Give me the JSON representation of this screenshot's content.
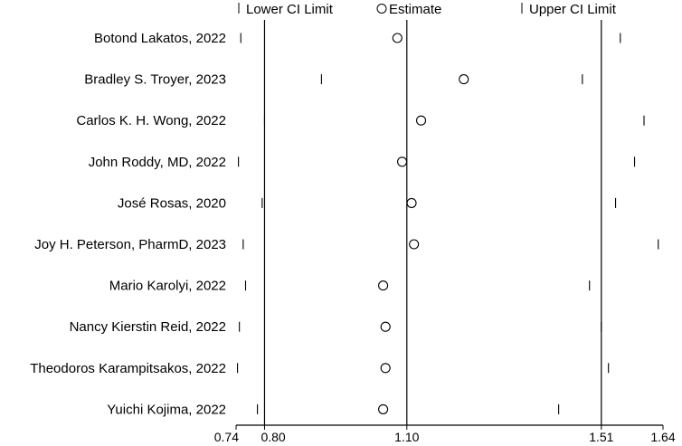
{
  "chart_data": {
    "type": "scatter",
    "subtype": "sensitivity-forest-plot",
    "legend": {
      "placement": "top",
      "items": [
        {
          "key": "lower",
          "label": "Lower CI Limit",
          "marker": "tick"
        },
        {
          "key": "estimate",
          "label": "Estimate",
          "marker": "circle"
        },
        {
          "key": "upper",
          "label": "Upper CI Limit",
          "marker": "tick"
        }
      ]
    },
    "x_axis": {
      "range": [
        0.74,
        1.64
      ],
      "ticks": [
        0.74,
        0.8,
        1.1,
        1.51,
        1.64
      ],
      "tick_labels": [
        "0.74",
        "0.80",
        "1.10",
        "1.51",
        "1.64"
      ],
      "reference_lines": [
        0.8,
        1.1,
        1.51
      ]
    },
    "grid": false,
    "series": [
      {
        "study": "Botond Lakatos, 2022",
        "lower": 0.75,
        "estimate": 1.08,
        "upper": 1.55
      },
      {
        "study": "Bradley S. Troyer, 2023",
        "lower": 0.92,
        "estimate": 1.22,
        "upper": 1.47
      },
      {
        "study": "Carlos K. H. Wong, 2022",
        "lower": 0.8,
        "estimate": 1.13,
        "upper": 1.6
      },
      {
        "study": "John Roddy, MD, 2022",
        "lower": 0.745,
        "estimate": 1.09,
        "upper": 1.58
      },
      {
        "study": "José Rosas, 2020",
        "lower": 0.795,
        "estimate": 1.11,
        "upper": 1.54
      },
      {
        "study": "Joy H. Peterson, PharmD, 2023",
        "lower": 0.755,
        "estimate": 1.115,
        "upper": 1.63
      },
      {
        "study": "Mario Karolyi, 2022",
        "lower": 0.76,
        "estimate": 1.05,
        "upper": 1.485
      },
      {
        "study": "Nancy Kierstin Reid, 2022",
        "lower": 0.747,
        "estimate": 1.055,
        "upper": 1.51
      },
      {
        "study": "Theodoros Karampitsakos, 2022",
        "lower": 0.743,
        "estimate": 1.055,
        "upper": 1.525
      },
      {
        "study": "Yuichi Kojima, 2022",
        "lower": 0.785,
        "estimate": 1.05,
        "upper": 1.42
      }
    ]
  }
}
